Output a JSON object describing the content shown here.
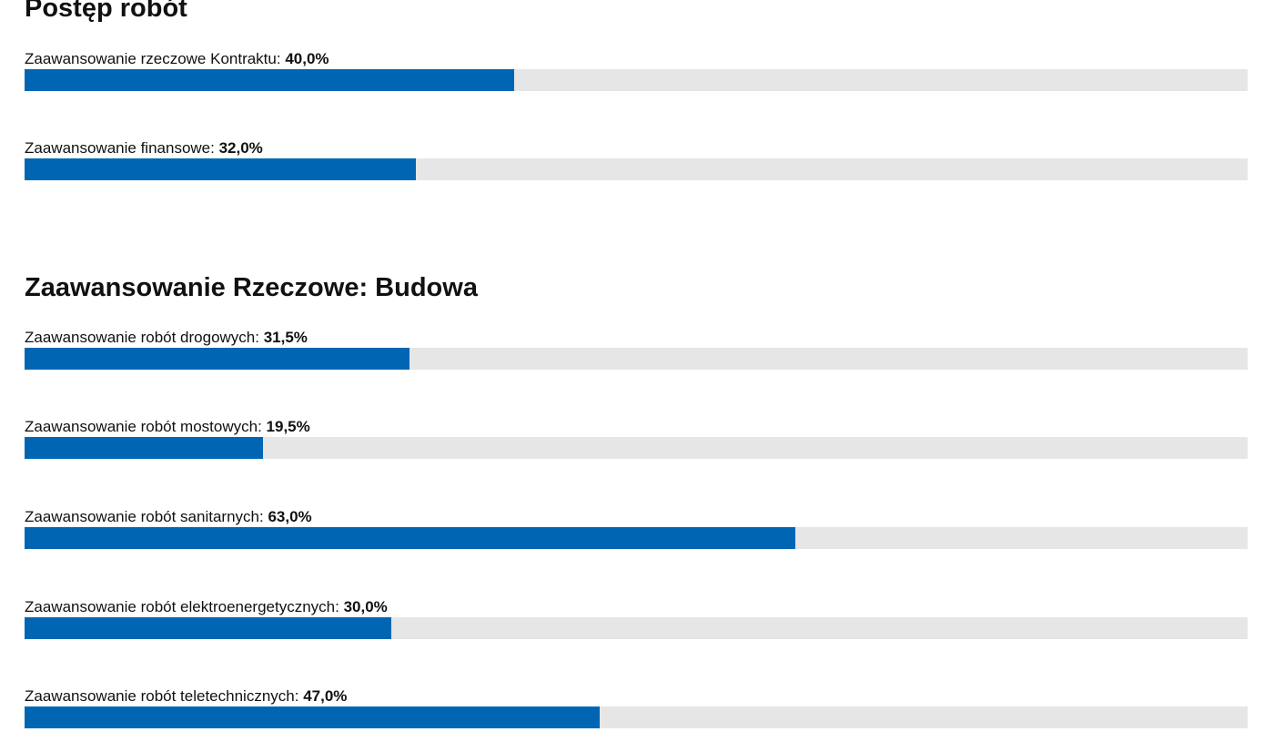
{
  "sections": [
    {
      "title": "Postęp robót",
      "items": [
        {
          "label": "Zaawansowanie rzeczowe Kontraktu: ",
          "value_text": "40,0%",
          "value": 40.0
        },
        {
          "label": "Zaawansowanie finansowe: ",
          "value_text": "32,0%",
          "value": 32.0
        }
      ]
    },
    {
      "title": "Zaawansowanie Rzeczowe: Budowa",
      "items": [
        {
          "label": "Zaawansowanie robót drogowych: ",
          "value_text": "31,5%",
          "value": 31.5
        },
        {
          "label": "Zaawansowanie robót mostowych: ",
          "value_text": "19,5%",
          "value": 19.5
        },
        {
          "label": "Zaawansowanie robót sanitarnych: ",
          "value_text": "63,0%",
          "value": 63.0
        },
        {
          "label": "Zaawansowanie robót elektroenergetycznych: ",
          "value_text": "30,0%",
          "value": 30.0
        },
        {
          "label": "Zaawansowanie robót teletechnicznych: ",
          "value_text": "47,0%",
          "value": 47.0
        }
      ]
    }
  ],
  "colors": {
    "fill": "#0066b3",
    "track": "#e6e6e6"
  }
}
